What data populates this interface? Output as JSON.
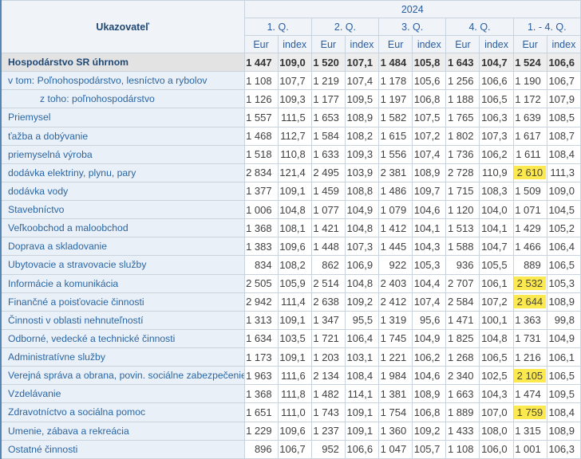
{
  "table": {
    "corner_header": "Ukazovateľ",
    "year_header": "2024",
    "quarter_headers": [
      "1. Q.",
      "2. Q.",
      "3. Q.",
      "4. Q.",
      "1. - 4. Q."
    ],
    "unit_headers": [
      "Eur",
      "index"
    ],
    "rows": [
      {
        "label": "Hospodárstvo SR úhrnom",
        "total": true,
        "cells": [
          "1 447",
          "109,0",
          "1 520",
          "107,1",
          "1 484",
          "105,8",
          "1 643",
          "104,7",
          "1 524",
          "106,6"
        ]
      },
      {
        "label": "v tom: Poľnohospodárstvo, lesníctvo a rybolov",
        "cells": [
          "1 108",
          "107,7",
          "1 219",
          "107,4",
          "1 178",
          "105,6",
          "1 256",
          "106,6",
          "1 190",
          "106,7"
        ]
      },
      {
        "label": "z toho: poľnohospodárstvo",
        "indent": true,
        "cells": [
          "1 126",
          "109,3",
          "1 177",
          "109,5",
          "1 197",
          "106,8",
          "1 188",
          "106,5",
          "1 172",
          "107,9"
        ]
      },
      {
        "label": "Priemysel",
        "cells": [
          "1 557",
          "111,5",
          "1 653",
          "108,9",
          "1 582",
          "107,5",
          "1 765",
          "106,3",
          "1 639",
          "108,5"
        ]
      },
      {
        "label": "ťažba a dobývanie",
        "cells": [
          "1 468",
          "112,7",
          "1 584",
          "108,2",
          "1 615",
          "107,2",
          "1 802",
          "107,3",
          "1 617",
          "108,7"
        ]
      },
      {
        "label": "priemyselná výroba",
        "cells": [
          "1 518",
          "110,8",
          "1 633",
          "109,3",
          "1 556",
          "107,4",
          "1 736",
          "106,2",
          "1 611",
          "108,4"
        ]
      },
      {
        "label": "dodávka elektriny, plynu, pary",
        "highlight": [
          8
        ],
        "cells": [
          "2 834",
          "121,4",
          "2 495",
          "103,9",
          "2 381",
          "108,9",
          "2 728",
          "110,9",
          "2 610",
          "111,3"
        ]
      },
      {
        "label": "dodávka vody",
        "cells": [
          "1 377",
          "109,1",
          "1 459",
          "108,8",
          "1 486",
          "109,7",
          "1 715",
          "108,3",
          "1 509",
          "109,0"
        ]
      },
      {
        "label": "Stavebníctvo",
        "cells": [
          "1 006",
          "104,8",
          "1 077",
          "104,9",
          "1 079",
          "104,6",
          "1 120",
          "104,0",
          "1 071",
          "104,5"
        ]
      },
      {
        "label": "Veľkoobchod a maloobchod",
        "cells": [
          "1 368",
          "108,1",
          "1 421",
          "104,8",
          "1 412",
          "104,1",
          "1 513",
          "104,1",
          "1 429",
          "105,2"
        ]
      },
      {
        "label": "Doprava a skladovanie",
        "cells": [
          "1 383",
          "109,6",
          "1 448",
          "107,3",
          "1 445",
          "104,3",
          "1 588",
          "104,7",
          "1 466",
          "106,4"
        ]
      },
      {
        "label": "Ubytovacie a stravovacie služby",
        "cells": [
          "834",
          "108,2",
          "862",
          "106,9",
          "922",
          "105,3",
          "936",
          "105,5",
          "889",
          "106,5"
        ]
      },
      {
        "label": "Informácie a komunikácia",
        "highlight": [
          8
        ],
        "cells": [
          "2 505",
          "105,9",
          "2 514",
          "104,8",
          "2 403",
          "104,4",
          "2 707",
          "106,1",
          "2 532",
          "105,3"
        ]
      },
      {
        "label": "Finančné a poisťovacie činnosti",
        "highlight": [
          8
        ],
        "cells": [
          "2 942",
          "111,4",
          "2 638",
          "109,2",
          "2 412",
          "107,4",
          "2 584",
          "107,2",
          "2 644",
          "108,9"
        ]
      },
      {
        "label": "Činnosti v oblasti nehnuteľností",
        "cells": [
          "1 313",
          "109,1",
          "1 347",
          "95,5",
          "1 319",
          "95,6",
          "1 471",
          "100,1",
          "1 363",
          "99,8"
        ]
      },
      {
        "label": "Odborné, vedecké a technické činnosti",
        "cells": [
          "1 634",
          "103,5",
          "1 721",
          "106,4",
          "1 745",
          "104,9",
          "1 825",
          "104,8",
          "1 731",
          "104,9"
        ]
      },
      {
        "label": "Administratívne služby",
        "cells": [
          "1 173",
          "109,1",
          "1 203",
          "103,1",
          "1 221",
          "106,2",
          "1 268",
          "106,5",
          "1 216",
          "106,1"
        ]
      },
      {
        "label": "Verejná správa a obrana, povin. sociálne zabezpečenie",
        "highlight": [
          8
        ],
        "cells": [
          "1 963",
          "111,6",
          "2 134",
          "108,4",
          "1 984",
          "104,6",
          "2 340",
          "102,5",
          "2 105",
          "106,5"
        ]
      },
      {
        "label": "Vzdelávanie",
        "cells": [
          "1 368",
          "111,8",
          "1 482",
          "114,1",
          "1 381",
          "108,9",
          "1 663",
          "104,3",
          "1 474",
          "109,5"
        ]
      },
      {
        "label": "Zdravotníctvo a sociálna pomoc",
        "highlight": [
          8
        ],
        "cells": [
          "1 651",
          "111,0",
          "1 743",
          "109,1",
          "1 754",
          "106,8",
          "1 889",
          "107,0",
          "1 759",
          "108,4"
        ]
      },
      {
        "label": "Umenie, zábava a rekreácia",
        "cells": [
          "1 229",
          "109,6",
          "1 237",
          "109,1",
          "1 360",
          "109,2",
          "1 433",
          "108,0",
          "1 315",
          "108,9"
        ]
      },
      {
        "label": "Ostatné činnosti",
        "cells": [
          "896",
          "106,7",
          "952",
          "106,6",
          "1 047",
          "105,7",
          "1 108",
          "106,0",
          "1 001",
          "106,3"
        ]
      }
    ]
  },
  "colors": {
    "accent_border": "#5585b5",
    "grid_border": "#c9d3de",
    "header_bg": "#f0f3f8",
    "header_text": "#2a5d9e",
    "corner_text": "#1f4874",
    "label_bg": "#eaf0f8",
    "label_text": "#2a66a3",
    "total_label_bg": "#e3e3e3",
    "total_val_bg": "#ededed",
    "total_text": "#1f4874",
    "value_text": "#404040",
    "highlight_bg": "#fce94f"
  },
  "chart_data": {
    "type": "table",
    "title": "Ukazovateľ — 2024",
    "columns_year": "2024",
    "periods": [
      "1. Q.",
      "2. Q.",
      "3. Q.",
      "4. Q.",
      "1. - 4. Q."
    ],
    "measures": [
      "Eur",
      "index"
    ],
    "highlighted_cells": "Eur value of period 1.-4. Q. for: dodávka elektriny, plynu, pary; Informácie a komunikácia; Finančné a poisťovacie činnosti; Verejná správa a obrana, povin. sociálne zabezpečenie; Zdravotníctvo a sociálna pomoc",
    "rows": [
      {
        "indicator": "Hospodárstvo SR úhrnom",
        "eur": [
          1447,
          1520,
          1484,
          1643,
          1524
        ],
        "index": [
          109.0,
          107.1,
          105.8,
          104.7,
          106.6
        ]
      },
      {
        "indicator": "v tom: Poľnohospodárstvo, lesníctvo a rybolov",
        "eur": [
          1108,
          1219,
          1178,
          1256,
          1190
        ],
        "index": [
          107.7,
          107.4,
          105.6,
          106.6,
          106.7
        ]
      },
      {
        "indicator": "z toho: poľnohospodárstvo",
        "eur": [
          1126,
          1177,
          1197,
          1188,
          1172
        ],
        "index": [
          109.3,
          109.5,
          106.8,
          106.5,
          107.9
        ]
      },
      {
        "indicator": "Priemysel",
        "eur": [
          1557,
          1653,
          1582,
          1765,
          1639
        ],
        "index": [
          111.5,
          108.9,
          107.5,
          106.3,
          108.5
        ]
      },
      {
        "indicator": "ťažba a dobývanie",
        "eur": [
          1468,
          1584,
          1615,
          1802,
          1617
        ],
        "index": [
          112.7,
          108.2,
          107.2,
          107.3,
          108.7
        ]
      },
      {
        "indicator": "priemyselná výroba",
        "eur": [
          1518,
          1633,
          1556,
          1736,
          1611
        ],
        "index": [
          110.8,
          109.3,
          107.4,
          106.2,
          108.4
        ]
      },
      {
        "indicator": "dodávka elektriny, plynu, pary",
        "eur": [
          2834,
          2495,
          2381,
          2728,
          2610
        ],
        "index": [
          121.4,
          103.9,
          108.9,
          110.9,
          111.3
        ]
      },
      {
        "indicator": "dodávka vody",
        "eur": [
          1377,
          1459,
          1486,
          1715,
          1509
        ],
        "index": [
          109.1,
          108.8,
          109.7,
          108.3,
          109.0
        ]
      },
      {
        "indicator": "Stavebníctvo",
        "eur": [
          1006,
          1077,
          1079,
          1120,
          1071
        ],
        "index": [
          104.8,
          104.9,
          104.6,
          104.0,
          104.5
        ]
      },
      {
        "indicator": "Veľkoobchod a maloobchod",
        "eur": [
          1368,
          1421,
          1412,
          1513,
          1429
        ],
        "index": [
          108.1,
          104.8,
          104.1,
          104.1,
          105.2
        ]
      },
      {
        "indicator": "Doprava a skladovanie",
        "eur": [
          1383,
          1448,
          1445,
          1588,
          1466
        ],
        "index": [
          109.6,
          107.3,
          104.3,
          104.7,
          106.4
        ]
      },
      {
        "indicator": "Ubytovacie a stravovacie služby",
        "eur": [
          834,
          862,
          922,
          936,
          889
        ],
        "index": [
          108.2,
          106.9,
          105.3,
          105.5,
          106.5
        ]
      },
      {
        "indicator": "Informácie a komunikácia",
        "eur": [
          2505,
          2514,
          2403,
          2707,
          2532
        ],
        "index": [
          105.9,
          104.8,
          104.4,
          106.1,
          105.3
        ]
      },
      {
        "indicator": "Finančné a poisťovacie činnosti",
        "eur": [
          2942,
          2638,
          2412,
          2584,
          2644
        ],
        "index": [
          111.4,
          109.2,
          107.4,
          107.2,
          108.9
        ]
      },
      {
        "indicator": "Činnosti v oblasti nehnuteľností",
        "eur": [
          1313,
          1347,
          1319,
          1471,
          1363
        ],
        "index": [
          109.1,
          95.5,
          95.6,
          100.1,
          99.8
        ]
      },
      {
        "indicator": "Odborné, vedecké a technické činnosti",
        "eur": [
          1634,
          1721,
          1745,
          1825,
          1731
        ],
        "index": [
          103.5,
          106.4,
          104.9,
          104.8,
          104.9
        ]
      },
      {
        "indicator": "Administratívne služby",
        "eur": [
          1173,
          1203,
          1221,
          1268,
          1216
        ],
        "index": [
          109.1,
          103.1,
          106.2,
          106.5,
          106.1
        ]
      },
      {
        "indicator": "Verejná správa a obrana, povin. sociálne zabezpečenie",
        "eur": [
          1963,
          2134,
          1984,
          2340,
          2105
        ],
        "index": [
          111.6,
          108.4,
          104.6,
          102.5,
          106.5
        ]
      },
      {
        "indicator": "Vzdelávanie",
        "eur": [
          1368,
          1482,
          1381,
          1663,
          1474
        ],
        "index": [
          111.8,
          114.1,
          108.9,
          104.3,
          109.5
        ]
      },
      {
        "indicator": "Zdravotníctvo a sociálna pomoc",
        "eur": [
          1651,
          1743,
          1754,
          1889,
          1759
        ],
        "index": [
          111.0,
          109.1,
          106.8,
          107.0,
          108.4
        ]
      },
      {
        "indicator": "Umenie, zábava a rekreácia",
        "eur": [
          1229,
          1237,
          1360,
          1433,
          1315
        ],
        "index": [
          109.6,
          109.1,
          109.2,
          108.0,
          108.9
        ]
      },
      {
        "indicator": "Ostatné činnosti",
        "eur": [
          896,
          952,
          1047,
          1108,
          1001
        ],
        "index": [
          106.7,
          106.6,
          105.7,
          106.0,
          106.3
        ]
      }
    ]
  }
}
